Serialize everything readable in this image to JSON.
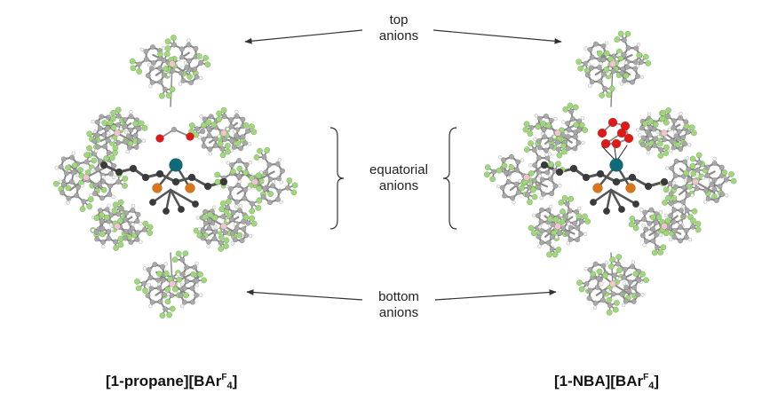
{
  "labels": {
    "top": [
      "top",
      "anions"
    ],
    "equatorial": [
      "equatorial",
      "anions"
    ],
    "bottom": [
      "bottom",
      "anions"
    ]
  },
  "captions": {
    "left": {
      "pre": "[1-propane][BAr",
      "sup": "F",
      "sub": "4",
      "post": "]"
    },
    "right": {
      "pre": "[1-NBA][BAr",
      "sup": "F",
      "sub": "4",
      "post": "]"
    }
  },
  "colors": {
    "fluorine": "#9ed87a",
    "carbon": "#a8a8a8",
    "carbon_dark": "#3a3a3a",
    "hydrogen": "#f2f2f2",
    "boron": "#f2c4d0",
    "rhodium": "#0e6b78",
    "phosphorus": "#d9761c",
    "oxygen": "#e01818",
    "bond": "#8c8c8c"
  }
}
